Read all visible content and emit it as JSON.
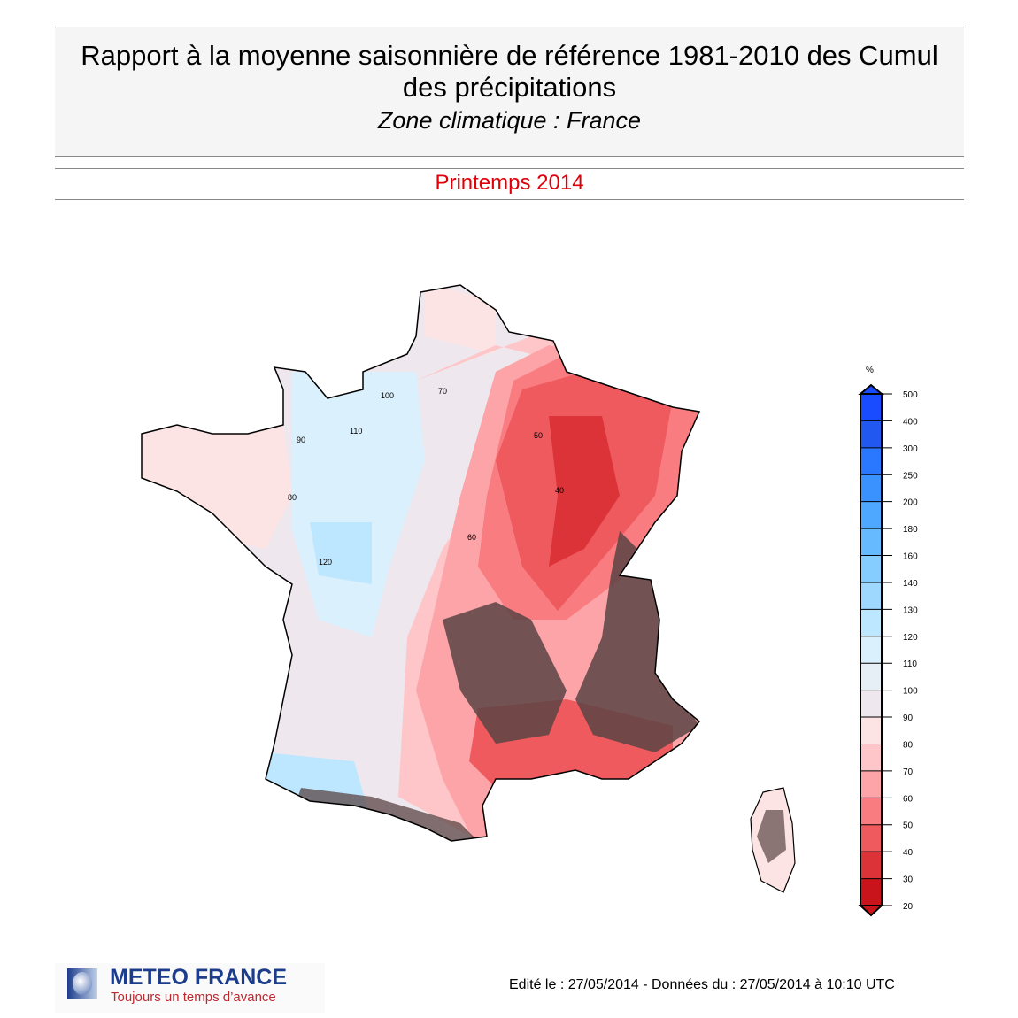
{
  "header": {
    "title": "Rapport à la moyenne saisonnière de référence 1981-2010 des Cumul des précipitations",
    "subtitle": "Zone climatique : France"
  },
  "period": "Printemps 2014",
  "legend": {
    "unit": "%",
    "labels": [
      "500",
      "400",
      "300",
      "250",
      "200",
      "180",
      "160",
      "140",
      "130",
      "120",
      "110",
      "100",
      "90",
      "80",
      "70",
      "60",
      "50",
      "40",
      "30",
      "20"
    ],
    "colors": [
      "#1a4cff",
      "#2158f0",
      "#2a78ff",
      "#3a92ff",
      "#4fa8ff",
      "#66baff",
      "#86cdff",
      "#9ed8ff",
      "#bde6ff",
      "#daf0fc",
      "#e6eef6",
      "#eee8ee",
      "#fde4e4",
      "#fec6c8",
      "#fca4a8",
      "#f87c80",
      "#ee5a5e",
      "#dc3338",
      "#c8141a"
    ]
  },
  "map": {
    "contour_labels": [
      "110",
      "100",
      "90",
      "80",
      "70",
      "60",
      "50",
      "40",
      "120"
    ],
    "relief_color": "#5a4444"
  },
  "footer": {
    "logo_name": "METEO FRANCE",
    "logo_tagline": "Toujours un temps d’avance",
    "edition": "Edité le : 27/05/2014 - Données du : 27/05/2014 à 10:10 UTC"
  }
}
